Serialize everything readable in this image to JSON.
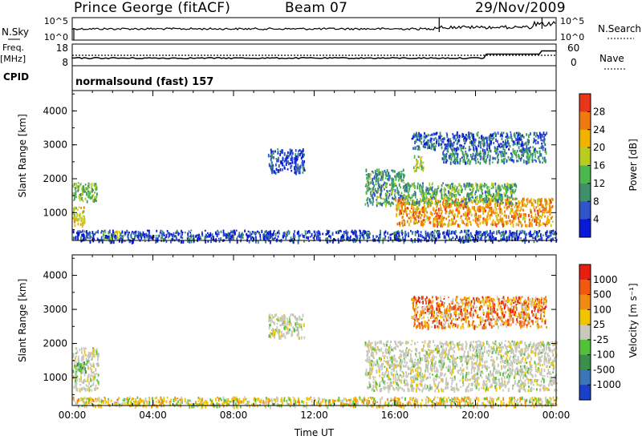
{
  "header": {
    "station": "Prince George (fitACF)",
    "beam": "Beam 07",
    "date": "29/Nov/2009"
  },
  "top_panels": {
    "nsky": {
      "label": "N.Sky",
      "tick_top": "10^5",
      "tick_bottom": "10^0",
      "right_tick_top": "10^5",
      "right_tick_bottom": "10^0",
      "right_label": "N.Search"
    },
    "freq": {
      "label_line1": "Freq.",
      "label_line2": "[MHz]",
      "tick_top": "18",
      "tick_bottom": "8",
      "right_tick_top": "60",
      "right_tick_bottom": "0",
      "right_label": "Nave"
    },
    "cpid": {
      "label": "CPID",
      "text": "normalsound (fast) 157"
    }
  },
  "chart_data": [
    {
      "type": "heatmap",
      "panel": "power",
      "ylabel": "Slant Range [km]",
      "ylim": [
        180,
        4600
      ],
      "yticks": [
        1000,
        2000,
        3000,
        4000
      ],
      "xlim": [
        0,
        24
      ],
      "colorbar": {
        "label": "Power [dB]",
        "ticks": [
          "4",
          "8",
          "12",
          "16",
          "20",
          "24",
          "28"
        ],
        "colors": [
          "#0a18d8",
          "#2f55c8",
          "#3f8f6a",
          "#4bb84e",
          "#b8cd1f",
          "#f2b300",
          "#f07a10",
          "#e8361a"
        ]
      },
      "scatter_regions": [
        {
          "t0": 0.0,
          "t1": 0.6,
          "r0": 650,
          "r1": 1200,
          "v": 0.65
        },
        {
          "t0": 0.0,
          "t1": 1.2,
          "r0": 1350,
          "r1": 1900,
          "v": 0.45
        },
        {
          "t0": 1.5,
          "t1": 2.5,
          "r0": 250,
          "r1": 500,
          "v": 0.55
        },
        {
          "t0": 9.7,
          "t1": 11.5,
          "r0": 2200,
          "r1": 2900,
          "v": 0.12
        },
        {
          "t0": 14.5,
          "t1": 16.5,
          "r0": 1250,
          "r1": 2300,
          "v": 0.35
        },
        {
          "t0": 16.0,
          "t1": 23.8,
          "r0": 650,
          "r1": 1450,
          "v": 0.75
        },
        {
          "t0": 16.5,
          "t1": 22.0,
          "r0": 1300,
          "r1": 1900,
          "v": 0.4
        },
        {
          "t0": 16.9,
          "t1": 17.4,
          "r0": 2250,
          "r1": 2700,
          "v": 0.55
        },
        {
          "t0": 18.3,
          "t1": 23.5,
          "r0": 2500,
          "r1": 2900,
          "v": 0.3
        },
        {
          "t0": 16.8,
          "t1": 23.5,
          "r0": 2900,
          "r1": 3400,
          "v": 0.2
        },
        {
          "t0": 0.0,
          "t1": 24.0,
          "r0": 180,
          "r1": 500,
          "v": 0.15
        }
      ]
    },
    {
      "type": "heatmap",
      "panel": "velocity",
      "ylabel": "Slant Range [km]",
      "ylim": [
        180,
        4600
      ],
      "yticks": [
        1000,
        2000,
        3000,
        4000
      ],
      "xlabel": "Time UT",
      "xlim": [
        0,
        24
      ],
      "xticks": [
        "00:00",
        "04:00",
        "08:00",
        "12:00",
        "16:00",
        "20:00",
        "00:00"
      ],
      "colorbar": {
        "label": "Velocity [m s⁻¹]",
        "ticks": [
          "1000",
          "500",
          "100",
          "25",
          "-25",
          "-100",
          "-500",
          "-1000"
        ],
        "colors": [
          "#1a3fc8",
          "#3b76b8",
          "#3a8f4a",
          "#52c23a",
          "#c8c8bc",
          "#f2c400",
          "#f08a10",
          "#f05a10",
          "#e81e10"
        ]
      },
      "scatter_regions": [
        {
          "t0": 0.0,
          "t1": 1.3,
          "r0": 650,
          "r1": 1900,
          "v": "gray"
        },
        {
          "t0": 0.0,
          "t1": 0.7,
          "r0": 1200,
          "r1": 1500,
          "v": "green"
        },
        {
          "t0": 9.7,
          "t1": 11.5,
          "r0": 2200,
          "r1": 2900,
          "v": "gray"
        },
        {
          "t0": 14.5,
          "t1": 24.0,
          "r0": 650,
          "r1": 2100,
          "v": "gray"
        },
        {
          "t0": 16.8,
          "t1": 23.5,
          "r0": 2500,
          "r1": 3400,
          "v": "orange"
        },
        {
          "t0": 0.0,
          "t1": 24.0,
          "r0": 180,
          "r1": 450,
          "v": "yellow"
        }
      ]
    }
  ]
}
